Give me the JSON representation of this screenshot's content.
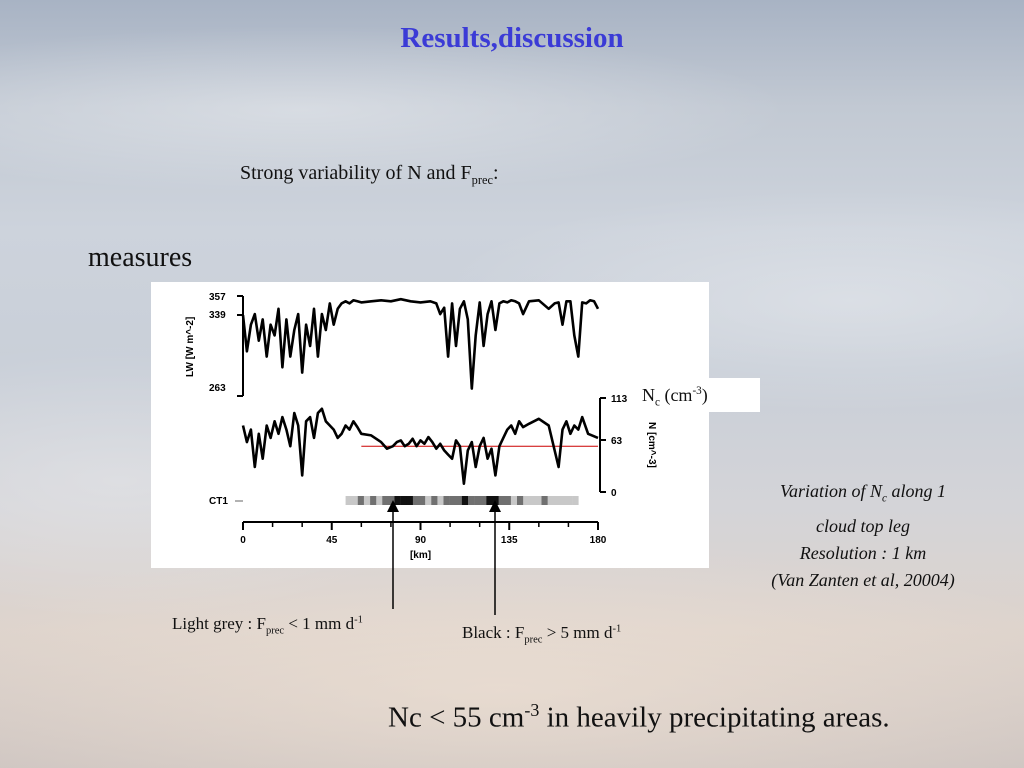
{
  "slide": {
    "title": "Results,discussion",
    "subtitle": {
      "text": "Strong variability of N and F",
      "sub": "prec",
      "tail": ":"
    },
    "measures_label": "measures",
    "nc_label": {
      "n": "N",
      "n_sub": "c",
      "unit_open": " (cm",
      "unit_sup": "-3",
      "unit_close": ")"
    },
    "caption": {
      "line1_pre": "Variation of N",
      "line1_sub": "c",
      "line1_post": " along 1",
      "line2": "cloud top leg",
      "line3": "Resolution : 1 km",
      "line4": "(Van Zanten et al, 20004)"
    },
    "note_light": {
      "pre": "Light grey : F",
      "sub": "prec",
      "mid": " < 1 mm d",
      "sup": "-1"
    },
    "note_black": {
      "pre": "Black : F",
      "sub": "prec",
      "mid": " > 5 mm d",
      "sup": "-1"
    },
    "conclusion": {
      "pre": "Nc < 55 cm",
      "sup": "-3",
      "post": " in heavily precipitating areas."
    },
    "colors": {
      "title": "#3b3bd6",
      "threshold_line": "#cc0000"
    }
  },
  "chart_data": [
    {
      "type": "line",
      "panel": "LW",
      "ylabel": "LW [W m^-2]",
      "yticks": [
        "357",
        "339",
        "263"
      ],
      "ytick_values": [
        357,
        339,
        263
      ],
      "ylim": [
        263,
        357
      ],
      "xlim": [
        0,
        180
      ],
      "x": [
        0,
        2,
        4,
        6,
        8,
        10,
        12,
        14,
        16,
        18,
        20,
        22,
        24,
        26,
        28,
        30,
        32,
        34,
        36,
        38,
        40,
        42,
        44,
        46,
        48,
        50,
        52,
        54,
        56,
        58,
        60,
        65,
        70,
        75,
        80,
        85,
        90,
        95,
        98,
        100,
        102,
        104,
        106,
        108,
        110,
        112,
        114,
        116,
        118,
        120,
        122,
        124,
        126,
        128,
        130,
        132,
        134,
        136,
        138,
        140,
        142,
        145,
        150,
        155,
        158,
        160,
        162,
        164,
        166,
        168,
        170,
        172,
        174,
        176,
        178,
        180
      ],
      "y": [
        339,
        305,
        330,
        340,
        315,
        335,
        300,
        330,
        320,
        345,
        290,
        335,
        300,
        325,
        340,
        285,
        330,
        310,
        345,
        300,
        340,
        325,
        350,
        330,
        345,
        350,
        352,
        350,
        353,
        352,
        351,
        352,
        353,
        352,
        354,
        352,
        351,
        352,
        350,
        340,
        346,
        300,
        350,
        310,
        345,
        352,
        335,
        270,
        320,
        351,
        310,
        340,
        352,
        325,
        350,
        352,
        351,
        353,
        352,
        350,
        340,
        352,
        353,
        345,
        350,
        351,
        330,
        352,
        352,
        320,
        300,
        351,
        350,
        353,
        352,
        345
      ]
    },
    {
      "type": "line",
      "panel": "N",
      "ylabel": "N [cm^-3]",
      "yticks": [
        "113",
        "63",
        "0"
      ],
      "ytick_values": [
        113,
        63,
        0
      ],
      "ylim": [
        0,
        113
      ],
      "xlim": [
        0,
        180
      ],
      "xticks": [
        "0",
        "45",
        "90",
        "135",
        "180"
      ],
      "xtick_values": [
        0,
        45,
        90,
        135,
        180
      ],
      "xlabel": "[km]",
      "threshold": 55,
      "x": [
        0,
        2,
        4,
        6,
        8,
        10,
        12,
        14,
        16,
        18,
        20,
        22,
        24,
        26,
        28,
        30,
        32,
        34,
        36,
        38,
        40,
        42,
        44,
        46,
        48,
        50,
        52,
        54,
        56,
        58,
        60,
        65,
        70,
        73,
        76,
        78,
        80,
        82,
        84,
        86,
        88,
        90,
        92,
        94,
        96,
        98,
        100,
        102,
        104,
        106,
        108,
        110,
        112,
        114,
        116,
        118,
        120,
        122,
        124,
        126,
        128,
        130,
        132,
        134,
        136,
        138,
        140,
        142,
        145,
        150,
        155,
        160,
        162,
        164,
        166,
        168,
        170,
        172,
        175,
        180
      ],
      "y": [
        80,
        60,
        75,
        30,
        70,
        40,
        80,
        65,
        85,
        70,
        90,
        75,
        55,
        95,
        80,
        20,
        85,
        90,
        65,
        95,
        100,
        85,
        80,
        75,
        65,
        70,
        80,
        75,
        85,
        78,
        70,
        68,
        60,
        52,
        55,
        60,
        62,
        55,
        58,
        64,
        55,
        62,
        58,
        66,
        60,
        52,
        58,
        50,
        45,
        40,
        62,
        55,
        10,
        50,
        60,
        30,
        55,
        65,
        40,
        52,
        20,
        55,
        65,
        75,
        80,
        70,
        85,
        78,
        82,
        88,
        80,
        30,
        75,
        85,
        70,
        80,
        75,
        90,
        70,
        65
      ]
    },
    {
      "type": "heatmap",
      "panel": "CT1",
      "label": "CT1",
      "levels": [
        "light grey",
        "dark grey",
        "black"
      ],
      "cells": [
        0,
        0,
        1,
        0,
        1,
        0,
        1,
        1,
        2,
        2,
        2,
        1,
        1,
        0,
        1,
        0,
        1,
        1,
        1,
        2,
        1,
        1,
        1,
        2,
        2,
        1,
        1,
        0,
        1,
        0,
        0,
        0,
        1,
        0,
        0,
        0,
        0,
        0
      ],
      "x_start": 52,
      "x_end": 170
    }
  ]
}
